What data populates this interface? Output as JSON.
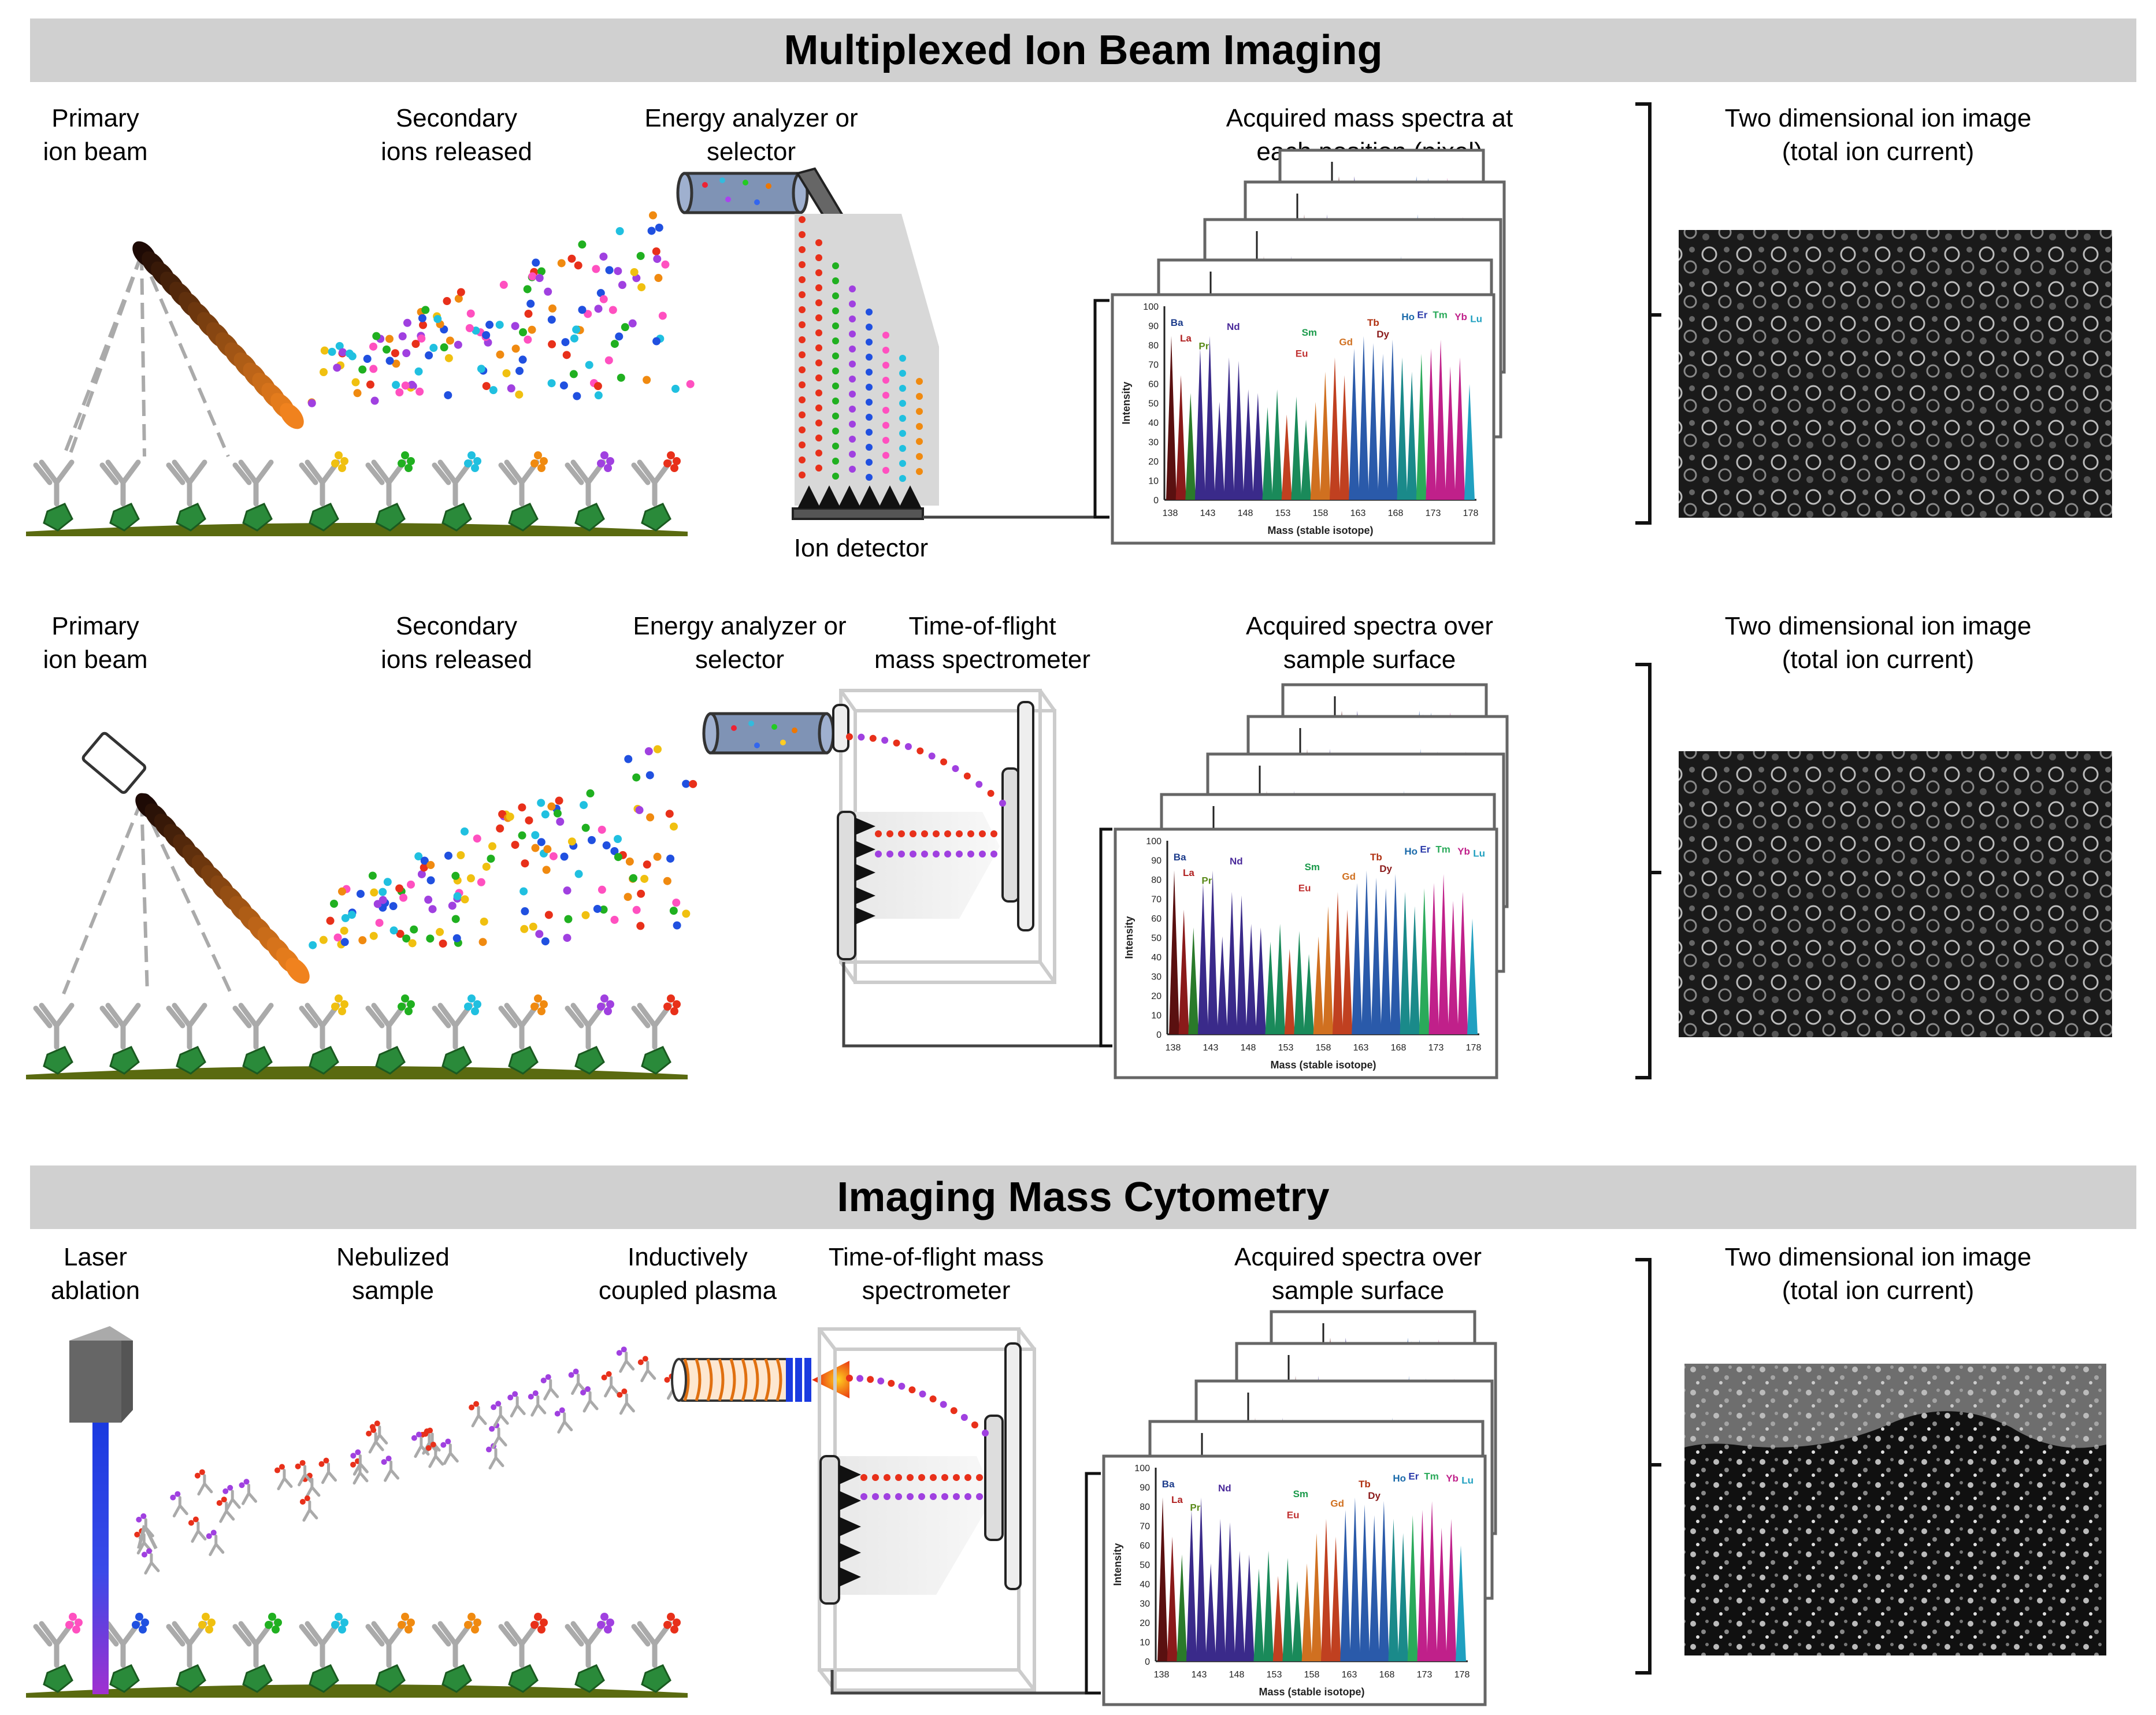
{
  "sections": {
    "mibi": {
      "title": "Multiplexed Ion Beam Imaging"
    },
    "imc": {
      "title": "Imaging Mass Cytometry"
    }
  },
  "row1": {
    "primary_beam": "Primary\nion beam",
    "secondary_ions": "Secondary\nions released",
    "energy_analyzer": "Energy analyzer or\nselector",
    "ion_detector": "Ion detector",
    "spectra": "Acquired mass spectra at\neach position (pixel)",
    "ion_image": "Two dimensional ion image\n(total ion current)"
  },
  "row2": {
    "primary_beam": "Primary\nion beam",
    "secondary_ions": "Secondary\nions released",
    "energy_analyzer": "Energy analyzer or\nselector",
    "tof": "Time-of-flight\nmass spectrometer",
    "spectra": "Acquired spectra over\nsample surface",
    "ion_image": "Two dimensional ion image\n(total ion current)"
  },
  "row3": {
    "laser": "Laser\nablation",
    "nebulized": "Nebulized\nsample",
    "icp": "Inductively\ncoupled plasma",
    "tof": "Time-of-flight mass\nspectrometer",
    "spectra": "Acquired spectra over\nsample surface",
    "ion_image": "Two dimensional ion image\n(total ion current)"
  },
  "spectrum": {
    "y_label": "Intensity",
    "x_label": "Mass (stable isotope)",
    "y_ticks": [
      "0",
      "10",
      "20",
      "30",
      "40",
      "50",
      "60",
      "70",
      "80",
      "90",
      "100"
    ],
    "x_ticks": [
      "138",
      "143",
      "148",
      "153",
      "158",
      "163",
      "168",
      "173",
      "178"
    ],
    "back_ticks": [
      "178"
    ],
    "elements": [
      {
        "name": "Ba",
        "color": "#1a3a8a"
      },
      {
        "name": "La",
        "color": "#b02020"
      },
      {
        "name": "Pr",
        "color": "#5a8a1a"
      },
      {
        "name": "Nd",
        "color": "#4a2a9a"
      },
      {
        "name": "Eu",
        "color": "#c03030"
      },
      {
        "name": "Sm",
        "color": "#1a9a4a"
      },
      {
        "name": "Gd",
        "color": "#d07020"
      },
      {
        "name": "Tb",
        "color": "#b03010"
      },
      {
        "name": "Dy",
        "color": "#8a1a1a"
      },
      {
        "name": "Ho",
        "color": "#1a6aaa"
      },
      {
        "name": "Er",
        "color": "#2a3aaa"
      },
      {
        "name": "Tm",
        "color": "#2aaa5a"
      },
      {
        "name": "Yb",
        "color": "#c0208a"
      },
      {
        "name": "Lu",
        "color": "#20a0c0"
      }
    ],
    "peaks": [
      {
        "color": "#5a1010",
        "h": 0.92
      },
      {
        "color": "#8a1a1a",
        "h": 0.7
      },
      {
        "color": "#2a7a2a",
        "h": 0.6
      },
      {
        "color": "#3a2a8a",
        "h": 0.85
      },
      {
        "color": "#3a2a8a",
        "h": 0.92
      },
      {
        "color": "#3a2a8a",
        "h": 0.55
      },
      {
        "color": "#3a2a8a",
        "h": 0.8
      },
      {
        "color": "#3a2a8a",
        "h": 0.78
      },
      {
        "color": "#3a2a8a",
        "h": 0.62
      },
      {
        "color": "#3a2a8a",
        "h": 0.6
      },
      {
        "color": "#1a8a5a",
        "h": 0.52
      },
      {
        "color": "#1a8a5a",
        "h": 0.62
      },
      {
        "color": "#c04020",
        "h": 0.48
      },
      {
        "color": "#1a8a5a",
        "h": 0.58
      },
      {
        "color": "#1a8a5a",
        "h": 0.45
      },
      {
        "color": "#d07020",
        "h": 0.55
      },
      {
        "color": "#d07020",
        "h": 0.72
      },
      {
        "color": "#c04020",
        "h": 0.8
      },
      {
        "color": "#c04020",
        "h": 0.7
      },
      {
        "color": "#2a5aaa",
        "h": 0.85
      },
      {
        "color": "#2a5aaa",
        "h": 0.92
      },
      {
        "color": "#2a5aaa",
        "h": 0.88
      },
      {
        "color": "#2a5aaa",
        "h": 0.82
      },
      {
        "color": "#2a5aaa",
        "h": 0.9
      },
      {
        "color": "#1a8a8a",
        "h": 0.8
      },
      {
        "color": "#1a8a8a",
        "h": 0.72
      },
      {
        "color": "#2aaa5a",
        "h": 0.82
      },
      {
        "color": "#c0208a",
        "h": 0.85
      },
      {
        "color": "#c0208a",
        "h": 0.9
      },
      {
        "color": "#c0208a",
        "h": 0.75
      },
      {
        "color": "#c0208a",
        "h": 0.8
      },
      {
        "color": "#20a0c0",
        "h": 0.65
      }
    ]
  },
  "colors": {
    "banner": "#d0d0d0",
    "analyzer": "#7f93b5",
    "beam_dark": "#3a1a08",
    "beam_light": "#e07010",
    "laser_blue": "#1a3ae0",
    "laser_purple": "#a030d0",
    "ground": "#5a6a10",
    "antigen": "#2a8a3a"
  }
}
